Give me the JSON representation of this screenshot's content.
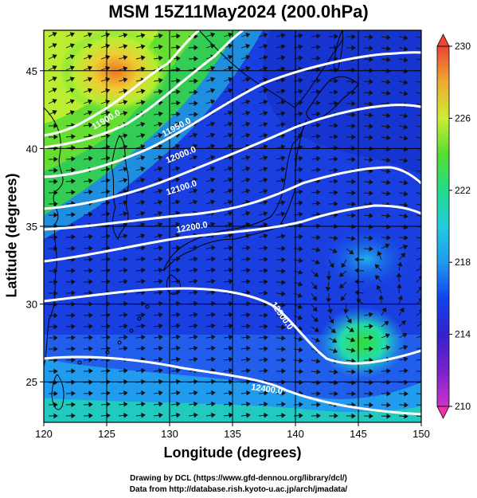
{
  "title": "MSM 15Z11May2024 (200.0hPa)",
  "xlabel": "Longitude (degrees)",
  "ylabel": "Latitude  (degrees)",
  "credits": [
    "Drawing by DCL (https://www.gfd-dennou.org/library/dcl/)",
    "Data from http://database.rish.kyoto-u.ac.jp/arch/jmadata/"
  ],
  "map": {
    "lon_range": [
      120,
      150
    ],
    "lat_range": [
      22.4,
      47.6
    ],
    "x_ticks": [
      "120",
      "125",
      "130",
      "135",
      "140",
      "145",
      "150"
    ],
    "y_ticks": [
      "25",
      "30",
      "35",
      "40",
      "45"
    ],
    "contour_labels": [
      "11900.0",
      "11950.0",
      "12000.0",
      "12100.0",
      "12200.0",
      "12300.0",
      "12400.0"
    ]
  },
  "colorbar": {
    "ticks": [
      "210",
      "214",
      "218",
      "222",
      "226",
      "230"
    ],
    "colors": [
      "#cc33cc",
      "#4433cc",
      "#1144ee",
      "#22aaee",
      "#22ddaa",
      "#33dd33",
      "#bbee33",
      "#eecc33",
      "#ee7722",
      "#ee4433"
    ]
  }
}
